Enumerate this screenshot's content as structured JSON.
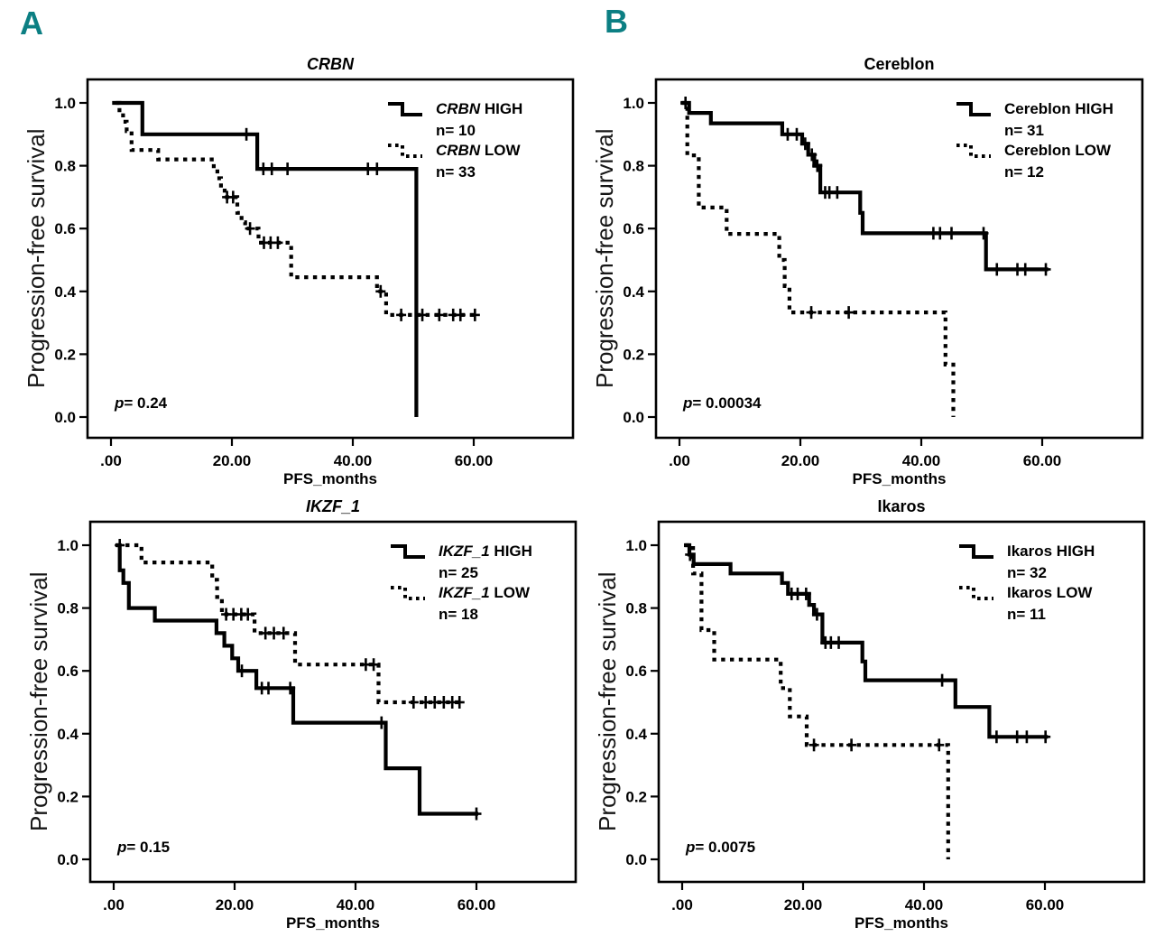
{
  "page": {
    "background": "#ffffff",
    "accent_teal": "#0c7f83"
  },
  "section_labels": [
    {
      "text": "A"
    },
    {
      "text": "B"
    }
  ],
  "axes": {
    "ylabel": "Progression-free survival",
    "xlabel": "PFS_months",
    "x_ticks": [
      {
        "v": 0,
        "label": ".00"
      },
      {
        "v": 20,
        "label": "20.00"
      },
      {
        "v": 40,
        "label": "40.00"
      },
      {
        "v": 60,
        "label": "60.00"
      }
    ],
    "y_ticks": [
      {
        "v": 0.0,
        "label": "0.0"
      },
      {
        "v": 0.2,
        "label": "0.2"
      },
      {
        "v": 0.4,
        "label": "0.4"
      },
      {
        "v": 0.6,
        "label": "0.6"
      },
      {
        "v": 0.8,
        "label": "0.8"
      },
      {
        "v": 1.0,
        "label": "1.0"
      }
    ],
    "xlim": [
      -4,
      76
    ],
    "ylim": [
      -0.07,
      1.07
    ],
    "grid": false
  },
  "chart_data": [
    {
      "type": "line",
      "subtype": "kaplan-meier-step",
      "title": "CRBN",
      "title_italic": true,
      "p_sym": "p",
      "p_rest": "= 0.24",
      "legend_position": "top-right-inside",
      "series": [
        {
          "label_em": "CRBN",
          "label_rest": " HIGH",
          "n_label": "n= 10",
          "style": "solid",
          "steps": [
            [
              0.2,
              1.0
            ],
            [
              5.2,
              0.9
            ],
            [
              24.2,
              0.79
            ],
            [
              50.5,
              0.0
            ]
          ],
          "end": 50.5,
          "censors": [
            [
              22.4,
              0.9
            ],
            [
              25.2,
              0.79
            ],
            [
              26.6,
              0.79
            ],
            [
              29.2,
              0.79
            ],
            [
              42.5,
              0.79
            ],
            [
              44.0,
              0.79
            ]
          ]
        },
        {
          "label_em": "CRBN",
          "label_rest": " LOW",
          "n_label": "n= 33",
          "style": "dashed",
          "steps": [
            [
              0.8,
              1.0
            ],
            [
              1.4,
              0.97
            ],
            [
              2.0,
              0.94
            ],
            [
              2.6,
              0.91
            ],
            [
              3.4,
              0.85
            ],
            [
              7.8,
              0.82
            ],
            [
              17.0,
              0.79
            ],
            [
              17.6,
              0.76
            ],
            [
              18.2,
              0.73
            ],
            [
              18.8,
              0.7
            ],
            [
              20.9,
              0.65
            ],
            [
              21.6,
              0.62
            ],
            [
              22.2,
              0.6
            ],
            [
              24.4,
              0.555
            ],
            [
              29.8,
              0.445
            ],
            [
              44.0,
              0.4
            ],
            [
              45.5,
              0.325
            ]
          ],
          "end": 60.5,
          "censors": [
            [
              19.2,
              0.7
            ],
            [
              20.2,
              0.7
            ],
            [
              23.0,
              0.6
            ],
            [
              25.3,
              0.555
            ],
            [
              26.4,
              0.555
            ],
            [
              27.6,
              0.555
            ],
            [
              44.6,
              0.4
            ],
            [
              48.0,
              0.325
            ],
            [
              51.5,
              0.325
            ],
            [
              54.3,
              0.325
            ],
            [
              56.6,
              0.325
            ],
            [
              57.8,
              0.325
            ],
            [
              60.2,
              0.325
            ]
          ]
        }
      ]
    },
    {
      "type": "line",
      "subtype": "kaplan-meier-step",
      "title": "Cereblon",
      "title_italic": false,
      "p_sym": "p",
      "p_rest": "= 0.00034",
      "legend_position": "top-right-inside",
      "series": [
        {
          "label_em": "",
          "label_rest": "Cereblon HIGH",
          "n_label": "n= 31",
          "style": "solid",
          "steps": [
            [
              0.2,
              1.0
            ],
            [
              1.6,
              0.968
            ],
            [
              5.2,
              0.935
            ],
            [
              17.0,
              0.9
            ],
            [
              20.3,
              0.87
            ],
            [
              21.3,
              0.835
            ],
            [
              22.3,
              0.8
            ],
            [
              23.3,
              0.715
            ],
            [
              29.9,
              0.65
            ],
            [
              30.3,
              0.585
            ],
            [
              50.7,
              0.47
            ]
          ],
          "end": 61.0,
          "censors": [
            [
              1.0,
              1.0
            ],
            [
              17.9,
              0.9
            ],
            [
              19.4,
              0.9
            ],
            [
              20.8,
              0.87
            ],
            [
              21.9,
              0.835
            ],
            [
              22.8,
              0.8
            ],
            [
              24.1,
              0.715
            ],
            [
              24.8,
              0.715
            ],
            [
              26.1,
              0.715
            ],
            [
              42.0,
              0.585
            ],
            [
              43.1,
              0.585
            ],
            [
              45.0,
              0.585
            ],
            [
              50.3,
              0.585
            ],
            [
              52.5,
              0.47
            ],
            [
              55.9,
              0.47
            ],
            [
              57.2,
              0.47
            ],
            [
              60.6,
              0.47
            ]
          ]
        },
        {
          "label_em": "",
          "label_rest": "Cereblon LOW",
          "n_label": "n= 12",
          "style": "dashed",
          "steps": [
            [
              0.5,
              1.0
            ],
            [
              1.3,
              0.833
            ],
            [
              3.2,
              0.667
            ],
            [
              7.8,
              0.583
            ],
            [
              16.5,
              0.5
            ],
            [
              17.4,
              0.417
            ],
            [
              18.2,
              0.333
            ],
            [
              44.0,
              0.167
            ],
            [
              45.3,
              0.0
            ]
          ],
          "end": 45.3,
          "censors": [
            [
              21.8,
              0.333
            ],
            [
              28.0,
              0.333
            ]
          ]
        }
      ]
    },
    {
      "type": "line",
      "subtype": "kaplan-meier-step",
      "title": "IKZF_1",
      "title_italic": true,
      "p_sym": "p",
      "p_rest": "= 0.15",
      "legend_position": "top-right-inside",
      "series": [
        {
          "label_em": "IKZF_1",
          "label_rest": " HIGH",
          "n_label": "n= 25",
          "style": "solid",
          "steps": [
            [
              0.3,
              1.0
            ],
            [
              1.0,
              0.92
            ],
            [
              1.6,
              0.88
            ],
            [
              2.5,
              0.8
            ],
            [
              6.8,
              0.76
            ],
            [
              17.0,
              0.72
            ],
            [
              18.3,
              0.68
            ],
            [
              19.6,
              0.64
            ],
            [
              20.6,
              0.6
            ],
            [
              23.6,
              0.545
            ],
            [
              29.7,
              0.435
            ],
            [
              45.0,
              0.29
            ],
            [
              50.6,
              0.145
            ]
          ],
          "end": 60.3,
          "censors": [
            [
              1.0,
              1.0
            ],
            [
              21.2,
              0.6
            ],
            [
              24.5,
              0.545
            ],
            [
              25.6,
              0.545
            ],
            [
              29.2,
              0.545
            ],
            [
              44.3,
              0.435
            ],
            [
              60.0,
              0.145
            ]
          ]
        },
        {
          "label_em": "IKZF_1",
          "label_rest": " LOW",
          "n_label": "n= 18",
          "style": "dashed",
          "steps": [
            [
              0.5,
              1.0
            ],
            [
              4.6,
              0.945
            ],
            [
              16.3,
              0.89
            ],
            [
              17.1,
              0.835
            ],
            [
              17.9,
              0.78
            ],
            [
              23.3,
              0.72
            ],
            [
              30.0,
              0.62
            ],
            [
              43.8,
              0.5
            ]
          ],
          "end": 57.5,
          "censors": [
            [
              18.6,
              0.78
            ],
            [
              19.8,
              0.78
            ],
            [
              21.1,
              0.78
            ],
            [
              22.2,
              0.78
            ],
            [
              25.1,
              0.72
            ],
            [
              26.5,
              0.72
            ],
            [
              28.1,
              0.72
            ],
            [
              41.7,
              0.62
            ],
            [
              43.0,
              0.62
            ],
            [
              49.6,
              0.5
            ],
            [
              51.6,
              0.5
            ],
            [
              53.1,
              0.5
            ],
            [
              54.6,
              0.5
            ],
            [
              56.0,
              0.5
            ],
            [
              57.2,
              0.5
            ]
          ]
        }
      ]
    },
    {
      "type": "line",
      "subtype": "kaplan-meier-step",
      "title": "Ikaros",
      "title_italic": false,
      "p_sym": "p",
      "p_rest": "= 0.0075",
      "legend_position": "top-right-inside",
      "series": [
        {
          "label_em": "",
          "label_rest": "Ikaros HIGH",
          "n_label": "n= 32",
          "style": "solid",
          "steps": [
            [
              0.3,
              1.0
            ],
            [
              1.2,
              0.97
            ],
            [
              1.9,
              0.94
            ],
            [
              8.0,
              0.91
            ],
            [
              16.5,
              0.88
            ],
            [
              17.5,
              0.845
            ],
            [
              21.0,
              0.81
            ],
            [
              21.8,
              0.78
            ],
            [
              23.2,
              0.69
            ],
            [
              29.8,
              0.63
            ],
            [
              30.3,
              0.57
            ],
            [
              45.2,
              0.485
            ],
            [
              50.8,
              0.39
            ]
          ],
          "end": 60.5,
          "censors": [
            [
              1.3,
              0.97
            ],
            [
              18.1,
              0.845
            ],
            [
              19.1,
              0.845
            ],
            [
              20.5,
              0.845
            ],
            [
              22.3,
              0.78
            ],
            [
              23.7,
              0.69
            ],
            [
              24.6,
              0.69
            ],
            [
              25.9,
              0.69
            ],
            [
              43.0,
              0.57
            ],
            [
              52.0,
              0.39
            ],
            [
              55.4,
              0.39
            ],
            [
              57.0,
              0.39
            ],
            [
              60.1,
              0.39
            ]
          ]
        },
        {
          "label_em": "",
          "label_rest": "Ikaros LOW",
          "n_label": "n= 11",
          "style": "dashed",
          "steps": [
            [
              0.5,
              1.0
            ],
            [
              1.8,
              0.91
            ],
            [
              3.2,
              0.73
            ],
            [
              5.3,
              0.636
            ],
            [
              16.3,
              0.545
            ],
            [
              17.8,
              0.455
            ],
            [
              20.6,
              0.364
            ],
            [
              44.0,
              0.0
            ]
          ],
          "end": 44.0,
          "censors": [
            [
              21.8,
              0.364
            ],
            [
              28.0,
              0.364
            ],
            [
              42.5,
              0.364
            ]
          ]
        }
      ]
    }
  ]
}
